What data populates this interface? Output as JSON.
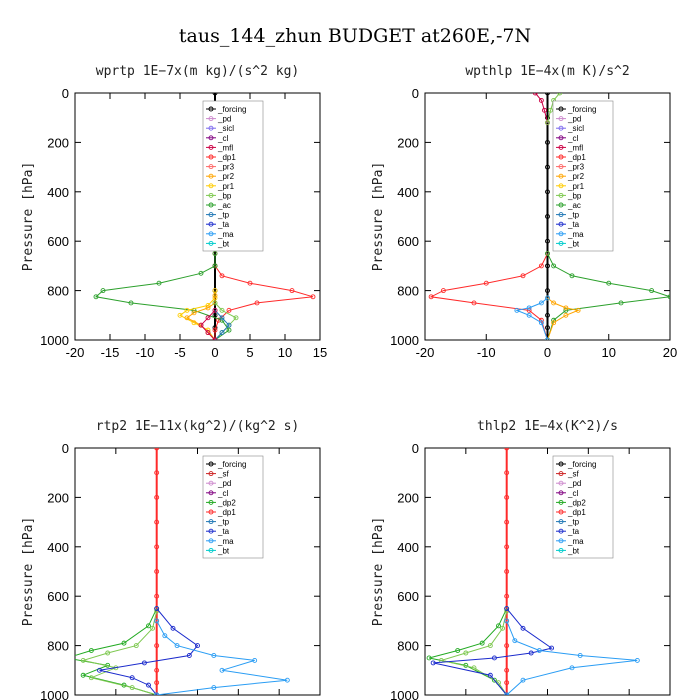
{
  "figure_title": "taus_144_zhun  BUDGET at260E,-7N",
  "colors": {
    "forcing": "#000000",
    "pd": "#cc88cc",
    "sicl": "#7b68ee",
    "cl": "#800080",
    "mfl": "#cc0044",
    "dp1": "#ff2a2a",
    "pr3": "#ff6666",
    "pr2": "#ffa500",
    "pr1": "#ffcc00",
    "bp": "#7ec850",
    "ac": "#2ca02c",
    "tp": "#1f77b4",
    "ta": "#1a2acc",
    "ma": "#2a9df4",
    "bt": "#00cccc",
    "sf": "#cc2222",
    "dp2": "#22aa22"
  },
  "chart_data": [
    {
      "type": "line",
      "title": "wprtp  1E−7x(m kg)/(s^2 kg)",
      "ylabel": "Pressure [hPa]",
      "xlim": [
        -20,
        15
      ],
      "ylim": [
        1000,
        0
      ],
      "xticks": [
        "-20",
        "-15",
        "-10",
        "-5",
        "0",
        "5",
        "10",
        "15"
      ],
      "xtick_values": [
        -20,
        -15,
        -10,
        -5,
        0,
        5,
        10,
        15
      ],
      "yticks": [
        "0",
        "200",
        "400",
        "600",
        "800",
        "1000"
      ],
      "ytick_values": [
        0,
        200,
        400,
        600,
        800,
        1000
      ],
      "legend": [
        "_forcing",
        "_pd",
        "_sicl",
        "_cl",
        "_mfl",
        "_dp1",
        "_pr3",
        "_pr2",
        "_pr1",
        "_bp",
        "_ac",
        "_tp",
        "_ta",
        "_ma",
        "_bt"
      ],
      "series": [
        {
          "name": "_forcing",
          "color": "#000000",
          "x": [
            0,
            0,
            0,
            0,
            0,
            0,
            0,
            0,
            0,
            0,
            0,
            0
          ],
          "y": [
            0,
            100,
            200,
            300,
            400,
            500,
            600,
            700,
            800,
            900,
            950,
            1000
          ]
        },
        {
          "name": "_dp1",
          "color": "#ff2a2a",
          "x": [
            0,
            0,
            1,
            5,
            11,
            14,
            6,
            2,
            0.5,
            0,
            0
          ],
          "y": [
            650,
            700,
            740,
            770,
            800,
            825,
            850,
            880,
            920,
            960,
            1000
          ]
        },
        {
          "name": "_ac",
          "color": "#2ca02c",
          "x": [
            0,
            0,
            -2,
            -8,
            -16,
            -17,
            -12,
            -3,
            1,
            2,
            0
          ],
          "y": [
            650,
            700,
            730,
            770,
            800,
            825,
            850,
            880,
            920,
            960,
            1000
          ]
        },
        {
          "name": "_pr1",
          "color": "#ffcc00",
          "x": [
            0,
            0,
            -1,
            -4,
            -5,
            -3,
            -1,
            0
          ],
          "y": [
            800,
            830,
            860,
            880,
            900,
            930,
            960,
            1000
          ]
        },
        {
          "name": "_pr2",
          "color": "#ffa500",
          "x": [
            0,
            0,
            -1,
            -3,
            -4,
            -2,
            -1,
            0
          ],
          "y": [
            820,
            850,
            870,
            890,
            910,
            940,
            970,
            1000
          ]
        },
        {
          "name": "_bp",
          "color": "#7ec850",
          "x": [
            0,
            1,
            3,
            2,
            1,
            0
          ],
          "y": [
            850,
            880,
            910,
            940,
            970,
            1000
          ]
        },
        {
          "name": "_tp",
          "color": "#1f77b4",
          "x": [
            0,
            1,
            2,
            1,
            0
          ],
          "y": [
            880,
            910,
            940,
            970,
            1000
          ]
        },
        {
          "name": "_mfl",
          "color": "#cc0044",
          "x": [
            0,
            -1,
            -2,
            -1,
            0
          ],
          "y": [
            880,
            910,
            940,
            970,
            1000
          ]
        }
      ]
    },
    {
      "type": "line",
      "title": "wpthlp  1E−4x(m K)/s^2",
      "ylabel": "Pressure [hPa]",
      "xlim": [
        -20,
        20
      ],
      "ylim": [
        1000,
        0
      ],
      "xticks": [
        "-20",
        "-10",
        "0",
        "10",
        "20"
      ],
      "xtick_values": [
        -20,
        -10,
        0,
        10,
        20
      ],
      "yticks": [
        "0",
        "200",
        "400",
        "600",
        "800",
        "1000"
      ],
      "ytick_values": [
        0,
        200,
        400,
        600,
        800,
        1000
      ],
      "legend": [
        "_forcing",
        "_pd",
        "_sicl",
        "_cl",
        "_mfl",
        "_dp1",
        "_pr3",
        "_pr2",
        "_pr1",
        "_bp",
        "_ac",
        "_tp",
        "_ta",
        "_ma",
        "_bt"
      ],
      "series": [
        {
          "name": "_forcing",
          "color": "#000000",
          "x": [
            0,
            0,
            0,
            0,
            0,
            0,
            0,
            0,
            0,
            0,
            0,
            0
          ],
          "y": [
            0,
            100,
            200,
            300,
            400,
            500,
            600,
            700,
            800,
            900,
            950,
            1000
          ]
        },
        {
          "name": "_dp1",
          "color": "#ff2a2a",
          "x": [
            0,
            -1,
            -4,
            -10,
            -17,
            -19,
            -12,
            -3,
            -1,
            0
          ],
          "y": [
            650,
            700,
            740,
            770,
            800,
            825,
            850,
            880,
            920,
            1000
          ]
        },
        {
          "name": "_ac",
          "color": "#2ca02c",
          "x": [
            0,
            1,
            4,
            10,
            17,
            20,
            12,
            3,
            1,
            0
          ],
          "y": [
            650,
            700,
            740,
            770,
            800,
            825,
            850,
            880,
            920,
            1000
          ]
        },
        {
          "name": "_pr2",
          "color": "#ffa500",
          "x": [
            0,
            1,
            3,
            5,
            3,
            1,
            0
          ],
          "y": [
            830,
            850,
            870,
            880,
            900,
            930,
            1000
          ]
        },
        {
          "name": "_ma",
          "color": "#2a9df4",
          "x": [
            0,
            -1,
            -3,
            -5,
            -3,
            -1,
            0
          ],
          "y": [
            830,
            850,
            870,
            880,
            900,
            930,
            1000
          ]
        },
        {
          "name": "_mfl",
          "color": "#cc0044",
          "x": [
            -2,
            -1,
            -0.5,
            0
          ],
          "y": [
            0,
            30,
            70,
            120
          ]
        },
        {
          "name": "_bp",
          "color": "#7ec850",
          "x": [
            2,
            1,
            0.5,
            0
          ],
          "y": [
            0,
            30,
            70,
            120
          ]
        }
      ]
    },
    {
      "type": "line",
      "title": "rtp2  1E−11x(kg^2)/(kg^2 s)",
      "ylabel": "Pressure [hPa]",
      "xlim": [
        -20,
        40
      ],
      "ylim": [
        1000,
        0
      ],
      "xticks": [
        "-20",
        "-10",
        "0",
        "10",
        "20",
        "30",
        "40"
      ],
      "xtick_values": [
        -20,
        -10,
        0,
        10,
        20,
        30,
        40
      ],
      "yticks": [
        "0",
        "200",
        "400",
        "600",
        "800",
        "1000"
      ],
      "ytick_values": [
        0,
        200,
        400,
        600,
        800,
        1000
      ],
      "legend": [
        "_forcing",
        "_sf",
        "_pd",
        "_cl",
        "_dp2",
        "_dp1",
        "_tp",
        "_ta",
        "_ma",
        "_bt"
      ],
      "series": [
        {
          "name": "_forcing",
          "color": "#ff2a2a",
          "x": [
            0,
            0,
            0,
            0,
            0,
            0,
            0,
            0,
            0,
            0,
            0,
            0
          ],
          "y": [
            0,
            100,
            200,
            300,
            400,
            500,
            600,
            700,
            800,
            900,
            950,
            1000
          ]
        },
        {
          "name": "_dp2",
          "color": "#22aa22",
          "x": [
            0,
            -2,
            -8,
            -16,
            -22,
            -12,
            -18,
            -8,
            0
          ],
          "y": [
            650,
            720,
            790,
            820,
            850,
            880,
            920,
            960,
            1000
          ]
        },
        {
          "name": "_dp1",
          "color": "#7ec850",
          "x": [
            0,
            -1,
            -5,
            -12,
            -18,
            -10,
            -16,
            -6,
            0
          ],
          "y": [
            660,
            730,
            800,
            830,
            860,
            890,
            930,
            970,
            1000
          ]
        },
        {
          "name": "_ta",
          "color": "#1a2acc",
          "x": [
            0,
            4,
            10,
            8,
            -3,
            -14,
            -6,
            -2,
            0
          ],
          "y": [
            650,
            730,
            800,
            840,
            870,
            900,
            930,
            960,
            1000
          ]
        },
        {
          "name": "_ma",
          "color": "#2a9df4",
          "x": [
            0,
            2,
            5,
            14,
            24,
            16,
            32,
            14,
            0
          ],
          "y": [
            700,
            760,
            800,
            840,
            860,
            900,
            940,
            970,
            1000
          ]
        }
      ]
    },
    {
      "type": "line",
      "title": "thlp2  1E−4x(K^2)/s",
      "ylabel": "Pressure [hPa]",
      "xlim": [
        -2,
        4
      ],
      "ylim": [
        1000,
        0
      ],
      "xticks": [
        "-2.0",
        "-1.0",
        "0.0",
        "1.0",
        "2.0",
        "3.0",
        "4.0"
      ],
      "xtick_values": [
        -2,
        -1,
        0,
        1,
        2,
        3,
        4
      ],
      "yticks": [
        "0",
        "200",
        "400",
        "600",
        "800",
        "1000"
      ],
      "ytick_values": [
        0,
        200,
        400,
        600,
        800,
        1000
      ],
      "legend": [
        "_forcing",
        "_sf",
        "_pd",
        "_cl",
        "_dp2",
        "_dp1",
        "_tp",
        "_ta",
        "_ma",
        "_bt"
      ],
      "series": [
        {
          "name": "_forcing",
          "color": "#ff2a2a",
          "x": [
            0,
            0,
            0,
            0,
            0,
            0,
            0,
            0,
            0,
            0,
            0,
            0
          ],
          "y": [
            0,
            100,
            200,
            300,
            400,
            500,
            600,
            700,
            800,
            900,
            950,
            1000
          ]
        },
        {
          "name": "_dp2",
          "color": "#22aa22",
          "x": [
            0,
            -0.2,
            -0.6,
            -1.2,
            -1.9,
            -1.0,
            -0.3,
            0
          ],
          "y": [
            650,
            720,
            790,
            820,
            850,
            880,
            940,
            1000
          ]
        },
        {
          "name": "_dp1",
          "color": "#7ec850",
          "x": [
            0,
            -0.1,
            -0.4,
            -1.0,
            -1.6,
            -0.8,
            -0.2,
            0
          ],
          "y": [
            660,
            730,
            800,
            830,
            860,
            890,
            950,
            1000
          ]
        },
        {
          "name": "_ta",
          "color": "#1a2acc",
          "x": [
            0,
            0.4,
            1.1,
            0.6,
            -0.3,
            -1.8,
            -0.4,
            0
          ],
          "y": [
            650,
            730,
            810,
            830,
            850,
            870,
            920,
            1000
          ]
        },
        {
          "name": "_ma",
          "color": "#2a9df4",
          "x": [
            0,
            0.2,
            0.8,
            1.8,
            3.2,
            1.6,
            0.4,
            0
          ],
          "y": [
            700,
            780,
            820,
            840,
            860,
            890,
            940,
            1000
          ]
        }
      ]
    }
  ]
}
